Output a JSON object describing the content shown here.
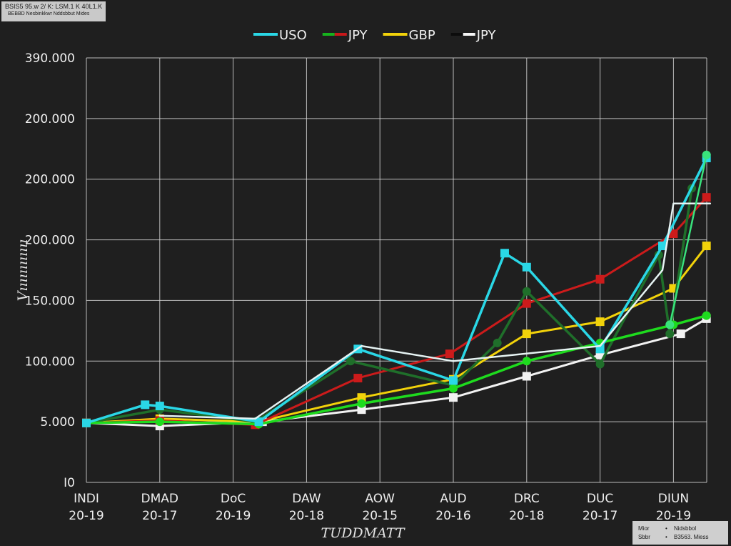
{
  "header_stamp": {
    "line1": "BSIS5 95.w 2/ K: LSM.1 K 40L1.K",
    "line2": "BEBBD  Nesbinkkwr Nddsbbut  Mides"
  },
  "source_box": {
    "rows": [
      {
        "key": "Mior",
        "dot": "•",
        "value": "Nidsbbol"
      },
      {
        "key": "Sbbr",
        "dot": "•",
        "value": "B3563. Miess"
      }
    ]
  },
  "chart_data": {
    "type": "line",
    "ylabel": "Vıııııııııııı",
    "xlabel": "TUDDMATT",
    "y_tick_labels": [
      "390.000",
      "200.000",
      "200.000",
      "200.000",
      "150.000",
      "100.000",
      "5.000",
      "I0"
    ],
    "x_tick_labels": [
      {
        "top": "INDI",
        "bottom": "20-19"
      },
      {
        "top": "DMAD",
        "bottom": "20-17"
      },
      {
        "top": "DoC",
        "bottom": "20-19"
      },
      {
        "top": "DAW",
        "bottom": "20-18"
      },
      {
        "top": "AOW",
        "bottom": "20-15"
      },
      {
        "top": "AUD",
        "bottom": "20-16"
      },
      {
        "top": "DRC",
        "bottom": "20-18"
      },
      {
        "top": "DUC",
        "bottom": "20-17"
      },
      {
        "top": "DIUN",
        "bottom": "20-19"
      }
    ],
    "y_units": "gridline units (0 = I0 bottom line, 7 = top line)",
    "ylim": [
      0,
      7
    ],
    "xlim": [
      0,
      8.55
    ],
    "grid": true,
    "legend_position": "top-center",
    "legend": [
      {
        "label": "USO",
        "colors": [
          "#2ad7e6"
        ]
      },
      {
        "label": "JPY",
        "colors": [
          "#16b31d",
          "#c8181a"
        ]
      },
      {
        "label": "GBP",
        "colors": [
          "#f2d20a"
        ]
      },
      {
        "label": "JPY",
        "colors": [
          "#0c0c0c",
          "#f4f4f4"
        ]
      }
    ],
    "series": [
      {
        "key": "white",
        "color": "#f2f2f2",
        "width": 3,
        "marker": "square",
        "points": [
          [
            0,
            0.98
          ],
          [
            1,
            0.93
          ],
          [
            2.4,
            1.0
          ],
          [
            3.75,
            1.2
          ],
          [
            5,
            1.4
          ],
          [
            6,
            1.75
          ],
          [
            7,
            2.1
          ],
          [
            8.1,
            2.45
          ],
          [
            8.45,
            2.7
          ]
        ]
      },
      {
        "key": "gbp",
        "color": "#f2d20a",
        "width": 3,
        "marker": "square",
        "points": [
          [
            0,
            0.98
          ],
          [
            1,
            1.05
          ],
          [
            2.35,
            1.0
          ],
          [
            3.75,
            1.4
          ],
          [
            5,
            1.7
          ],
          [
            6,
            2.45
          ],
          [
            7,
            2.65
          ],
          [
            8,
            3.2
          ],
          [
            8.45,
            3.9
          ]
        ]
      },
      {
        "key": "jpy-red",
        "color": "#cc1b1b",
        "width": 3,
        "marker": "square",
        "points": [
          [
            0,
            0.98
          ],
          [
            1,
            1.02
          ],
          [
            2.3,
            0.95
          ],
          [
            3.7,
            1.72
          ],
          [
            4.95,
            2.12
          ],
          [
            6,
            2.95
          ],
          [
            7,
            3.35
          ],
          [
            8,
            4.1
          ],
          [
            8.45,
            4.7
          ]
        ]
      },
      {
        "key": "jpy-darkgreen",
        "color": "#1f6f2a",
        "width": 3.5,
        "marker": "circle",
        "points": [
          [
            0,
            0.98
          ],
          [
            1,
            1.2
          ],
          [
            2.3,
            1.0
          ],
          [
            3.6,
            2.0
          ],
          [
            5,
            1.6
          ],
          [
            5.6,
            2.3
          ],
          [
            6,
            3.15
          ],
          [
            7,
            1.95
          ],
          [
            7.8,
            3.75
          ],
          [
            7.95,
            2.45
          ],
          [
            8.25,
            4.85
          ]
        ]
      },
      {
        "key": "jpy-green",
        "color": "#1edb1e",
        "width": 3.5,
        "marker": "circle",
        "points": [
          [
            0,
            0.98
          ],
          [
            1,
            1.0
          ],
          [
            2.35,
            0.96
          ],
          [
            3.75,
            1.3
          ],
          [
            5,
            1.55
          ],
          [
            6,
            2.0
          ],
          [
            7,
            2.3
          ],
          [
            8,
            2.6
          ],
          [
            8.45,
            2.75
          ]
        ]
      },
      {
        "key": "uso",
        "color": "#2ad7e6",
        "width": 3.5,
        "marker": "square",
        "points": [
          [
            0,
            0.98
          ],
          [
            0.8,
            1.28
          ],
          [
            1,
            1.26
          ],
          [
            2.35,
            1.0
          ],
          [
            3.7,
            2.2
          ],
          [
            5,
            1.68
          ],
          [
            5.7,
            3.78
          ],
          [
            6,
            3.55
          ],
          [
            7,
            2.2
          ],
          [
            7.85,
            3.9
          ],
          [
            8.45,
            5.35
          ]
        ]
      },
      {
        "key": "uso-light",
        "color": "#e6f3f3",
        "width": 2.5,
        "marker": "none",
        "points": [
          [
            1,
            1.1
          ],
          [
            2.3,
            1.05
          ],
          [
            3.75,
            2.25
          ],
          [
            5,
            2.0
          ],
          [
            7,
            2.25
          ],
          [
            7.85,
            3.5
          ],
          [
            8,
            4.6
          ],
          [
            8.5,
            4.6
          ]
        ]
      },
      {
        "key": "green-spike",
        "color": "#39e27c",
        "width": 2.5,
        "marker": "circle",
        "points": [
          [
            7.95,
            2.6
          ],
          [
            8.45,
            5.4
          ]
        ]
      }
    ]
  }
}
